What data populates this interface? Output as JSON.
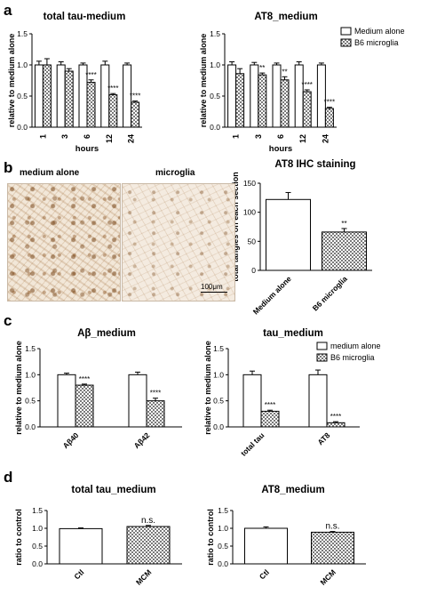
{
  "colors": {
    "bar_fill": "#ffffff",
    "hatch_fill": "#808080",
    "stroke": "#000000",
    "tissue": "#f2e7d8",
    "stain": "#8a5a2b"
  },
  "panel_labels": [
    "a",
    "b",
    "c",
    "d"
  ],
  "image_labels": {
    "left": "medium alone",
    "right": "microglia",
    "scale": "100μm"
  },
  "chart_data": [
    {
      "type": "bar",
      "panel": "a",
      "title": "total tau-medium",
      "xlabel": "hours",
      "ylabel": "relative to medium alone",
      "ylim": [
        0,
        1.5
      ],
      "yticks": [
        "0.0",
        "0.5",
        "1.0",
        "1.5"
      ],
      "categories": [
        "1",
        "3",
        "6",
        "12",
        "24"
      ],
      "series": [
        {
          "values": [
            1.0,
            1.0,
            1.0,
            1.0,
            1.0
          ],
          "errors": [
            0.06,
            0.05,
            0.03,
            0.06,
            0.03
          ]
        },
        {
          "values": [
            1.0,
            0.9,
            0.72,
            0.52,
            0.4
          ],
          "errors": [
            0.1,
            0.04,
            0.04,
            0.02,
            0.02
          ]
        }
      ],
      "significance": [
        "",
        "",
        "****",
        "****",
        "****"
      ]
    },
    {
      "type": "bar",
      "panel": "a",
      "title": "AT8_medium",
      "xlabel": "hours",
      "ylabel": "relative to medium alone",
      "ylim": [
        0,
        1.5
      ],
      "yticks": [
        "0.0",
        "0.5",
        "1.0",
        "1.5"
      ],
      "categories": [
        "1",
        "3",
        "6",
        "12",
        "24"
      ],
      "series": [
        {
          "name": "Medium alone",
          "values": [
            1.0,
            1.0,
            1.0,
            1.0,
            1.0
          ],
          "errors": [
            0.05,
            0.04,
            0.03,
            0.05,
            0.03
          ]
        },
        {
          "name": "B6 microglia",
          "values": [
            0.86,
            0.84,
            0.76,
            0.57,
            0.3
          ],
          "errors": [
            0.08,
            0.03,
            0.05,
            0.03,
            0.02
          ]
        }
      ],
      "significance": [
        "",
        "**",
        "**",
        "****",
        "****"
      ]
    },
    {
      "type": "bar",
      "panel": "b",
      "title": "AT8 IHC staining",
      "xlabel": "",
      "ylabel": "total tangles on each section",
      "ylim": [
        0,
        150
      ],
      "yticks": [
        "0",
        "50",
        "100",
        "150"
      ],
      "categories": [
        "Medium alone",
        "B6 microglia"
      ],
      "series": [
        {
          "values": [
            122,
            66
          ],
          "errors": [
            12,
            6
          ]
        }
      ],
      "significance": [
        "",
        "**"
      ]
    },
    {
      "type": "bar",
      "panel": "c",
      "title": "Aβ_medium",
      "xlabel": "",
      "ylabel": "relative to medium alone",
      "ylim": [
        0,
        1.5
      ],
      "yticks": [
        "0.0",
        "0.5",
        "1.0",
        "1.5"
      ],
      "categories": [
        "Aβ40",
        "Aβ42"
      ],
      "series": [
        {
          "values": [
            1.0,
            1.0
          ],
          "errors": [
            0.03,
            0.05
          ]
        },
        {
          "values": [
            0.8,
            0.5
          ],
          "errors": [
            0.02,
            0.05
          ]
        }
      ],
      "significance": [
        "****",
        "****"
      ]
    },
    {
      "type": "bar",
      "panel": "c",
      "title": "tau_medium",
      "xlabel": "",
      "ylabel": "relative to medium alone",
      "ylim": [
        0,
        1.5
      ],
      "yticks": [
        "0.0",
        "0.5",
        "1.0",
        "1.5"
      ],
      "categories": [
        "total tau",
        "AT8"
      ],
      "series": [
        {
          "name": "medium alone",
          "values": [
            1.0,
            1.0
          ],
          "errors": [
            0.07,
            0.09
          ]
        },
        {
          "name": "B6 microglia",
          "values": [
            0.3,
            0.08
          ],
          "errors": [
            0.02,
            0.02
          ]
        }
      ],
      "significance": [
        "****",
        "****"
      ]
    },
    {
      "type": "bar",
      "panel": "d",
      "title": "total tau_medium",
      "xlabel": "",
      "ylabel": "ratio to control",
      "ylim": [
        0,
        1.5
      ],
      "yticks": [
        "0.0",
        "0.5",
        "1.0",
        "1.5"
      ],
      "categories": [
        "Ctl",
        "MCM"
      ],
      "series": [
        {
          "values": [
            0.99,
            1.05
          ],
          "errors": [
            0.02,
            0.03
          ]
        }
      ],
      "significance": [
        "",
        "n.s."
      ]
    },
    {
      "type": "bar",
      "panel": "d",
      "title": "AT8_medium",
      "xlabel": "",
      "ylabel": "ratio to control",
      "ylim": [
        0,
        1.5
      ],
      "yticks": [
        "0.0",
        "0.5",
        "1.0",
        "1.5"
      ],
      "categories": [
        "Ctl",
        "MCM"
      ],
      "series": [
        {
          "values": [
            1.0,
            0.89
          ],
          "errors": [
            0.04,
            0.02
          ]
        }
      ],
      "significance": [
        "",
        "n.s."
      ]
    }
  ]
}
